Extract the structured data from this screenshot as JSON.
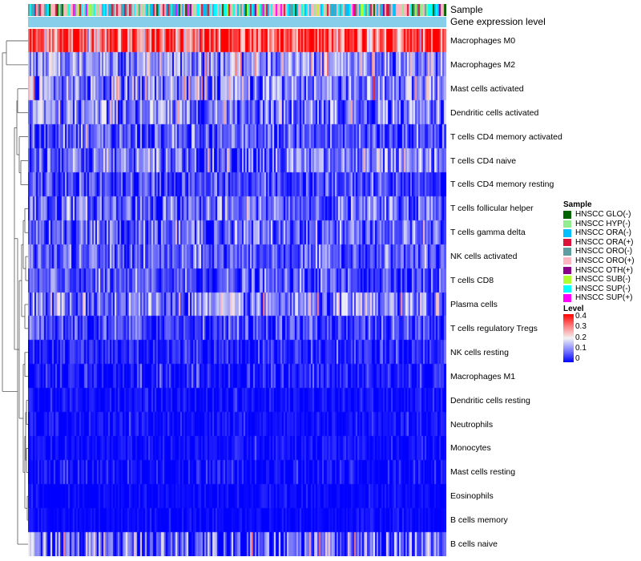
{
  "chart_data": {
    "type": "heatmap",
    "annotations": {
      "sample_label": "Sample",
      "expression_label": "Gene expression level"
    },
    "rows": [
      {
        "name": "Macrophages M0",
        "mean": 0.33,
        "sd": 0.09
      },
      {
        "name": "Macrophages M2",
        "mean": 0.13,
        "sd": 0.07
      },
      {
        "name": "Mast cells activated",
        "mean": 0.11,
        "sd": 0.08
      },
      {
        "name": "Dendritic cells activated",
        "mean": 0.1,
        "sd": 0.07
      },
      {
        "name": "T cells CD4 memory activated",
        "mean": 0.06,
        "sd": 0.06
      },
      {
        "name": "T cells CD4 naive",
        "mean": 0.09,
        "sd": 0.07
      },
      {
        "name": "T cells CD4 memory resting",
        "mean": 0.05,
        "sd": 0.05
      },
      {
        "name": "T cells follicular helper",
        "mean": 0.08,
        "sd": 0.06
      },
      {
        "name": "T cells gamma delta",
        "mean": 0.08,
        "sd": 0.06
      },
      {
        "name": "NK cells activated",
        "mean": 0.07,
        "sd": 0.05
      },
      {
        "name": "T cells CD8",
        "mean": 0.06,
        "sd": 0.05
      },
      {
        "name": "Plasma cells",
        "mean": 0.1,
        "sd": 0.07
      },
      {
        "name": "T cells regulatory  Tregs",
        "mean": 0.05,
        "sd": 0.05
      },
      {
        "name": "NK cells resting",
        "mean": 0.03,
        "sd": 0.04
      },
      {
        "name": "Macrophages M1",
        "mean": 0.02,
        "sd": 0.04
      },
      {
        "name": "Dendritic cells resting",
        "mean": 0.01,
        "sd": 0.02
      },
      {
        "name": "Neutrophils",
        "mean": 0.01,
        "sd": 0.02
      },
      {
        "name": "Monocytes",
        "mean": 0.01,
        "sd": 0.02
      },
      {
        "name": "Mast cells resting",
        "mean": 0.01,
        "sd": 0.03
      },
      {
        "name": "Eosinophils",
        "mean": 0.005,
        "sd": 0.015
      },
      {
        "name": "B cells memory",
        "mean": 0.005,
        "sd": 0.015
      },
      {
        "name": "B cells naive",
        "mean": 0.08,
        "sd": 0.09
      }
    ],
    "n_samples": 260,
    "sample_legend": {
      "title": "Sample",
      "items": [
        {
          "label": "HNSCC GLO(-)",
          "color": "#006400"
        },
        {
          "label": "HNSCC HYP(-)",
          "color": "#90ee90"
        },
        {
          "label": "HNSCC ORA(-)",
          "color": "#00bfff"
        },
        {
          "label": "HNSCC ORA(+)",
          "color": "#dc143c"
        },
        {
          "label": "HNSCC ORO(-)",
          "color": "#5f9ea0"
        },
        {
          "label": "HNSCC ORO(+)",
          "color": "#ffb6c1"
        },
        {
          "label": "HNSCC OTH(+)",
          "color": "#8b008b"
        },
        {
          "label": "HNSCC SUB(-)",
          "color": "#adff2f"
        },
        {
          "label": "HNSCC SUP(-)",
          "color": "#00ffff"
        },
        {
          "label": "HNSCC SUP(+)",
          "color": "#ff00ff"
        }
      ]
    },
    "level_legend": {
      "title": "Level",
      "ticks": [
        "0.4",
        "0.3",
        "0.2",
        "0.1",
        "0"
      ],
      "range": [
        0,
        0.4
      ],
      "colors": {
        "low": "#0000ff",
        "mid": "#f3f3f3",
        "high": "#ff0000"
      }
    },
    "expression_color": "#87ceeb"
  }
}
